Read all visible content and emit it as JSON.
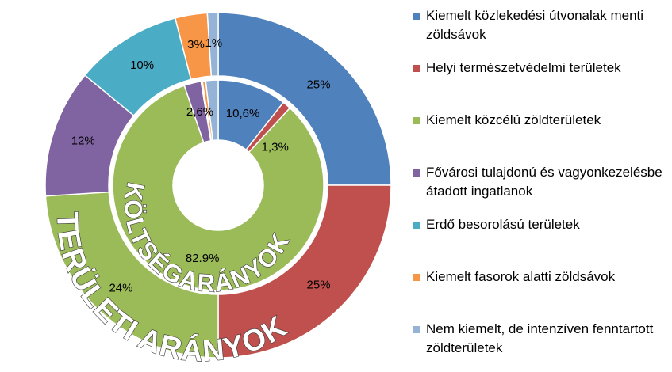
{
  "chart_data": {
    "type": "doughnut",
    "categories": [
      "Kiemelt közlekedési útvonalak menti zöldsávok",
      "Helyi természetvédelmi területek",
      "Kiemelt közcélú zöldterületek",
      "Fővárosi tulajdonú és vagyonkezelésbe átadott ingatlanok",
      "Erdő besorolású területek",
      "Kiemelt fasorok alatti zöldsávok",
      "Nem kiemelt, de intenzíven fenntartott zöldterületek"
    ],
    "colors": [
      "#4F81BD",
      "#C0504D",
      "#9BBB59",
      "#8064A2",
      "#4BACC6",
      "#F79646",
      "#95B3D7"
    ],
    "rings": [
      {
        "name": "TERÜLETI ARÁNYOK",
        "values": [
          25,
          25,
          24,
          12,
          10,
          3,
          1
        ],
        "value_labels": [
          "25%",
          "25%",
          "24%",
          "12%",
          "10%",
          "3%",
          "1%"
        ]
      },
      {
        "name": "KÖLTSÉGARÁNYOK",
        "values": [
          10.6,
          1.3,
          82.9,
          2.6,
          0.2,
          0.5,
          1.9
        ],
        "value_labels": [
          "10,6%",
          "1,3%",
          "82.9%",
          "2,6%",
          null,
          null,
          null
        ]
      }
    ]
  }
}
